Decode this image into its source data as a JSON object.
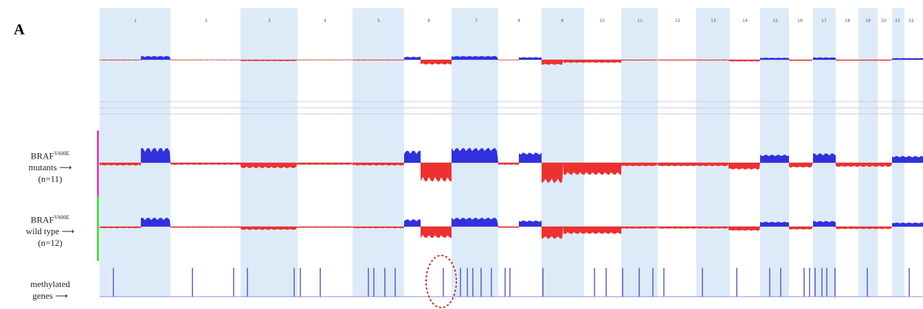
{
  "panel": "A",
  "chromosomes": [
    "1",
    "2",
    "3",
    "4",
    "5",
    "6",
    "7",
    "8",
    "9",
    "10",
    "11",
    "12",
    "13",
    "14",
    "15",
    "16",
    "17",
    "18",
    "19",
    "20",
    "21",
    "22"
  ],
  "rows": [
    {
      "gene": "BRAF",
      "mutation": "V600E",
      "label": "mutants",
      "count": "(n=11)"
    },
    {
      "gene": "BRAF",
      "mutation": "V600E",
      "label": "wild type",
      "count": "(n=12)"
    },
    {
      "label": "methylated",
      "label2": "genes"
    }
  ]
}
